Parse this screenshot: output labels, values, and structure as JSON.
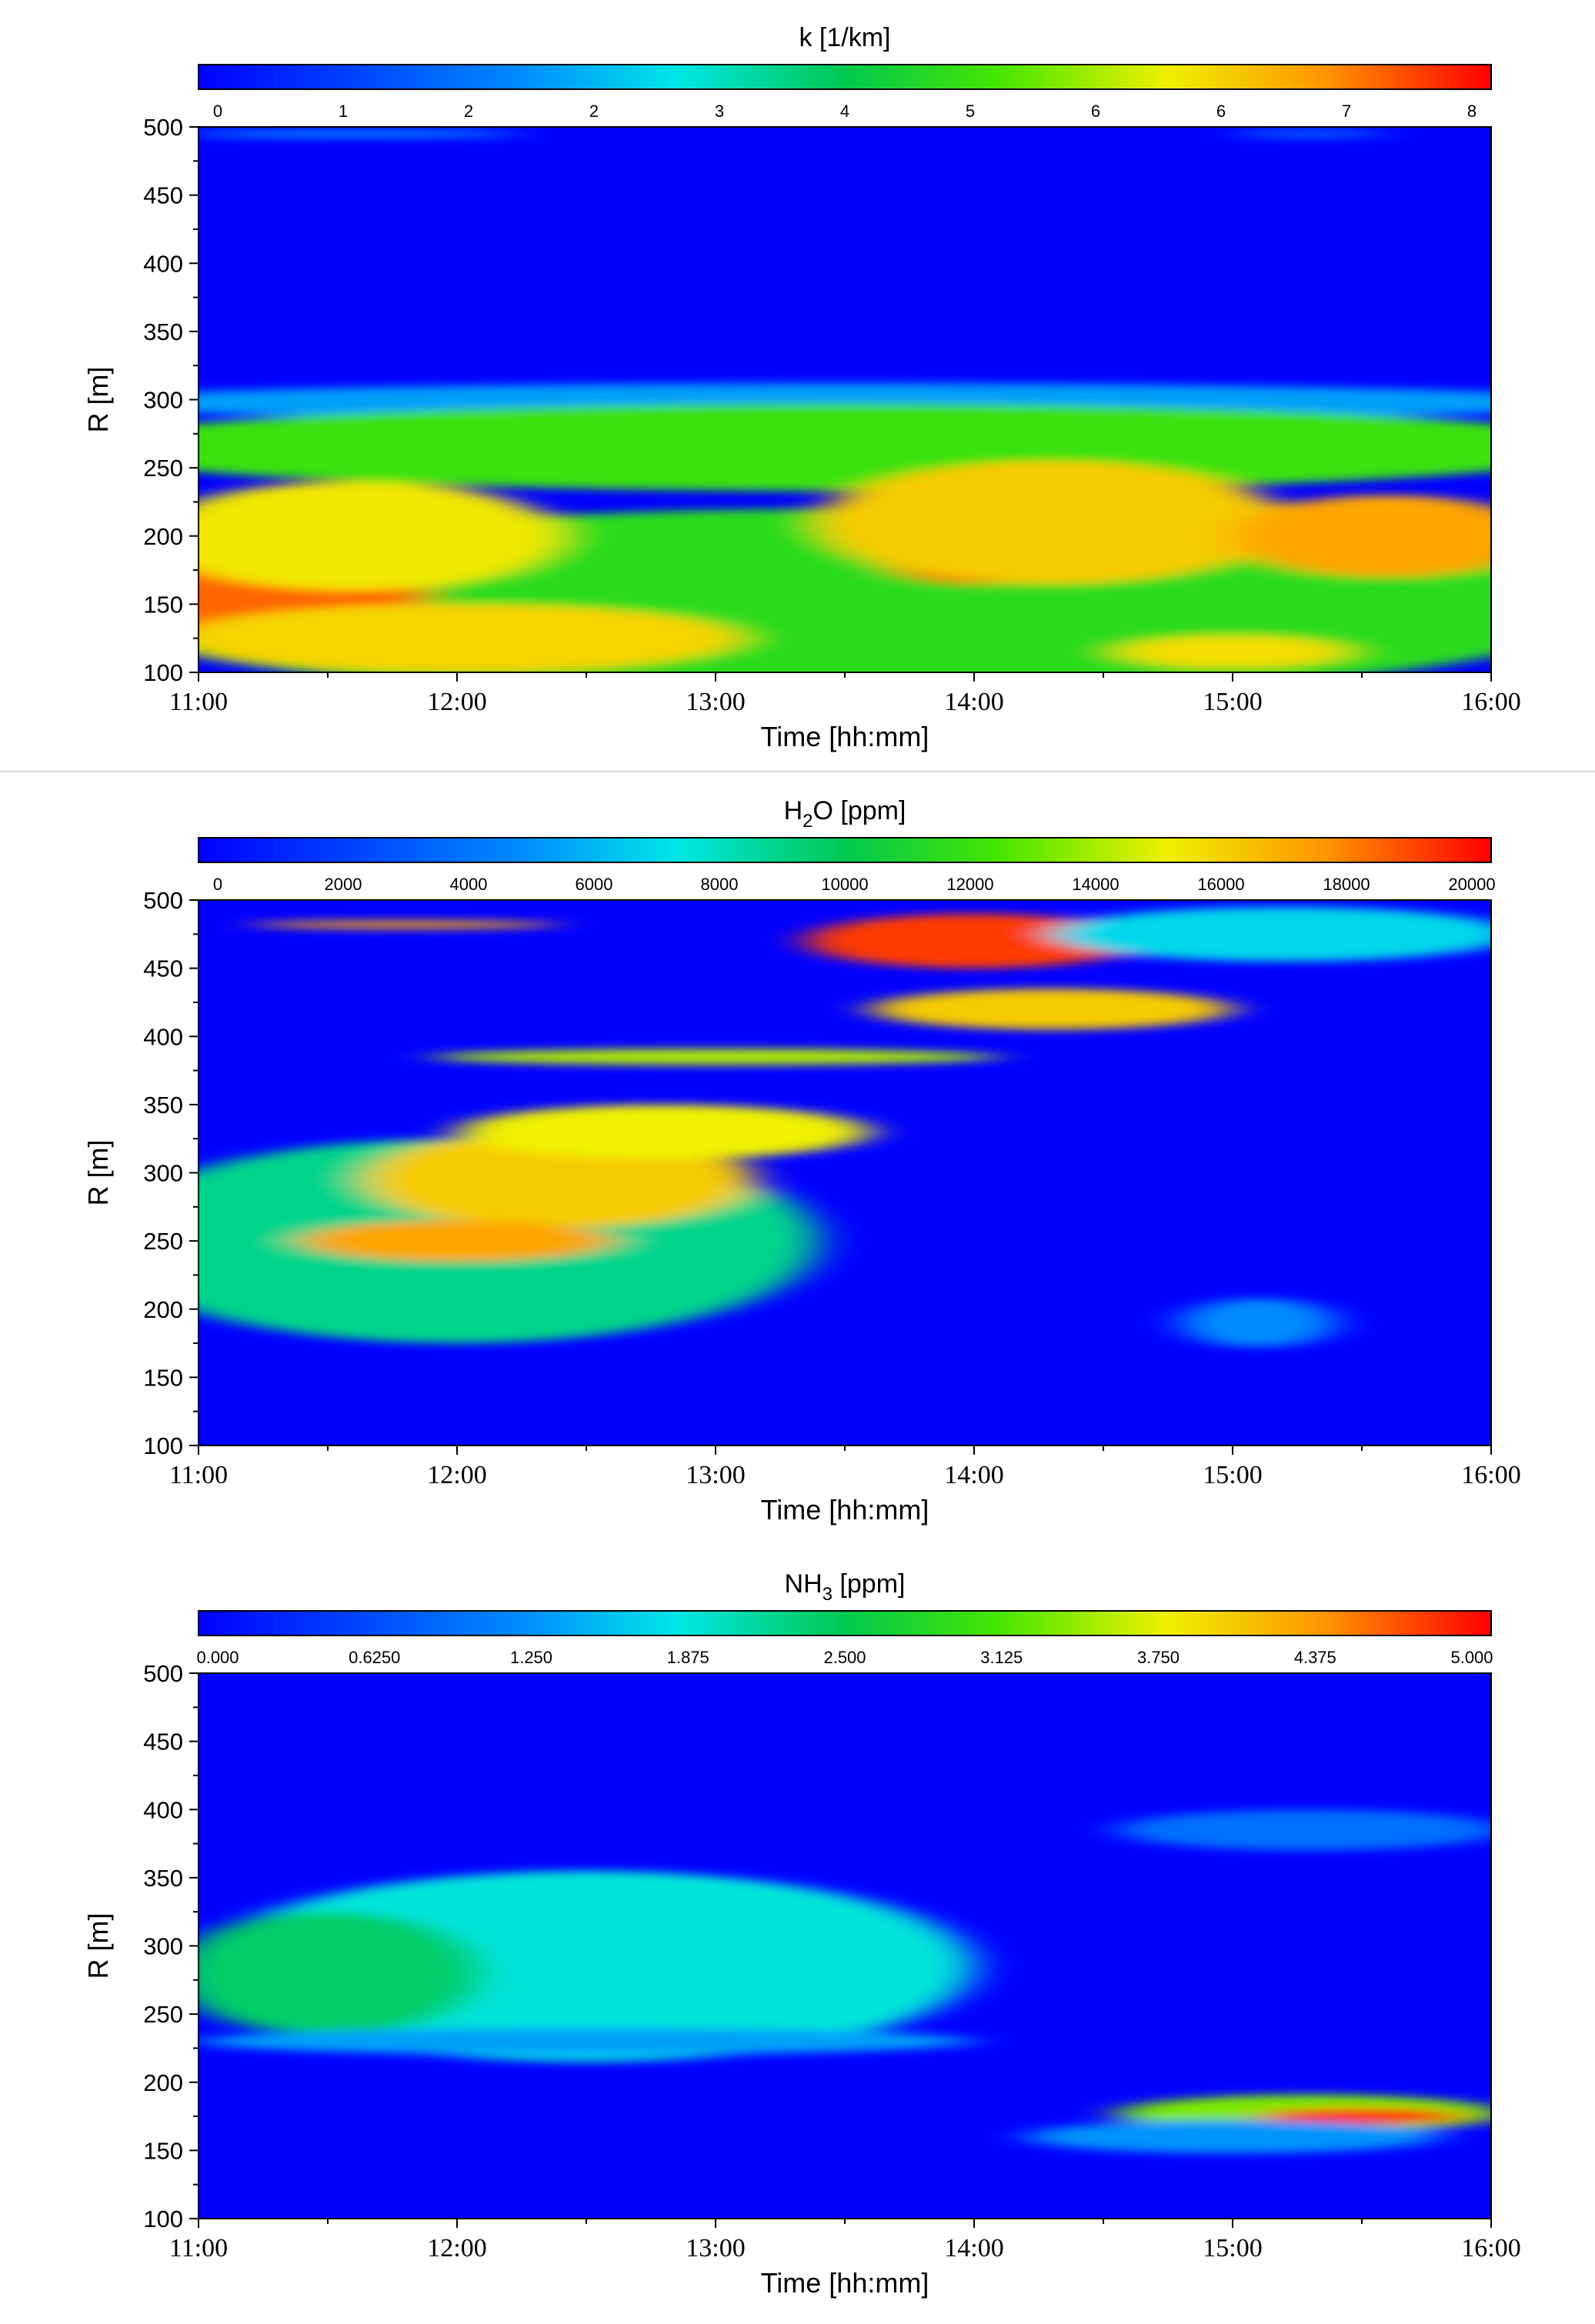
{
  "chart_data": [
    {
      "type": "heatmap",
      "title": "k [1/km]",
      "title_main": "k [1/km]",
      "title_sub": "",
      "title_suffix": "",
      "xlabel": "Time [hh:mm]",
      "ylabel": "R [m]",
      "x_ticks": [
        "11:00",
        "12:00",
        "13:00",
        "14:00",
        "15:00",
        "16:00"
      ],
      "x_range_hours": [
        11,
        16
      ],
      "y_ticks": [
        "100",
        "150",
        "200",
        "250",
        "300",
        "350",
        "400",
        "450",
        "500"
      ],
      "y_range": [
        100,
        500
      ],
      "colorbar_ticks": [
        "0",
        "1",
        "2",
        "2",
        "3",
        "4",
        "5",
        "6",
        "6",
        "7",
        "8"
      ],
      "colorbar_range": [
        0,
        8
      ],
      "features": [
        {
          "t": 11.6,
          "r": 495,
          "dt": 1.3,
          "dr": 3,
          "v": 2.0
        },
        {
          "t": 15.3,
          "r": 495,
          "dt": 0.6,
          "dr": 3,
          "v": 1.5
        },
        {
          "t": 13.5,
          "r": 298,
          "dt": 6.0,
          "dr": 14,
          "v": 2.2
        },
        {
          "t": 13.5,
          "r": 265,
          "dt": 6.0,
          "dr": 32,
          "v": 4.8
        },
        {
          "t": 13.5,
          "r": 150,
          "dt": 6.0,
          "dr": 70,
          "v": 4.6
        },
        {
          "t": 11.3,
          "r": 170,
          "dt": 1.2,
          "dr": 60,
          "v": 7.3
        },
        {
          "t": 11.6,
          "r": 200,
          "dt": 1.6,
          "dr": 40,
          "v": 6.1
        },
        {
          "t": 12.0,
          "r": 125,
          "dt": 2.2,
          "dr": 25,
          "v": 6.3
        },
        {
          "t": 14.0,
          "r": 200,
          "dt": 0.9,
          "dr": 35,
          "v": 8.0
        },
        {
          "t": 14.3,
          "r": 210,
          "dt": 1.8,
          "dr": 45,
          "v": 6.4
        },
        {
          "t": 15.6,
          "r": 200,
          "dt": 1.2,
          "dr": 30,
          "v": 6.8
        },
        {
          "t": 15.0,
          "r": 115,
          "dt": 0.9,
          "dr": 12,
          "v": 6.2
        }
      ]
    },
    {
      "type": "heatmap",
      "title": "H2O [ppm]",
      "title_main": "H",
      "title_sub": "2",
      "title_suffix": "O [ppm]",
      "xlabel": "Time [hh:mm]",
      "ylabel": "R [m]",
      "x_ticks": [
        "11:00",
        "12:00",
        "13:00",
        "14:00",
        "15:00",
        "16:00"
      ],
      "x_range_hours": [
        11,
        16
      ],
      "y_ticks": [
        "100",
        "150",
        "200",
        "250",
        "300",
        "350",
        "400",
        "450",
        "500"
      ],
      "y_range": [
        100,
        500
      ],
      "colorbar_ticks": [
        "0",
        "2000",
        "4000",
        "6000",
        "8000",
        "10000",
        "12000",
        "14000",
        "16000",
        "18000",
        "20000"
      ],
      "colorbar_range": [
        0,
        20000
      ],
      "features": [
        {
          "t": 12.0,
          "r": 250,
          "dt": 2.8,
          "dr": 75,
          "v": 9000
        },
        {
          "t": 12.4,
          "r": 295,
          "dt": 1.5,
          "dr": 35,
          "v": 16000
        },
        {
          "t": 12.0,
          "r": 250,
          "dt": 1.2,
          "dr": 15,
          "v": 17000
        },
        {
          "t": 12.8,
          "r": 330,
          "dt": 1.6,
          "dr": 20,
          "v": 15000
        },
        {
          "t": 13.0,
          "r": 385,
          "dt": 2.2,
          "dr": 6,
          "v": 14000
        },
        {
          "t": 11.8,
          "r": 482,
          "dt": 1.2,
          "dr": 3,
          "v": 17000
        },
        {
          "t": 14.0,
          "r": 470,
          "dt": 1.3,
          "dr": 20,
          "v": 19000
        },
        {
          "t": 14.3,
          "r": 420,
          "dt": 1.4,
          "dr": 15,
          "v": 16000
        },
        {
          "t": 15.2,
          "r": 475,
          "dt": 1.8,
          "dr": 20,
          "v": 7000
        },
        {
          "t": 15.1,
          "r": 190,
          "dt": 0.6,
          "dr": 18,
          "v": 5000
        }
      ]
    },
    {
      "type": "heatmap",
      "title": "NH3 [ppm]",
      "title_main": "NH",
      "title_sub": "3",
      "title_suffix": " [ppm]",
      "xlabel": "Time [hh:mm]",
      "ylabel": "R [m]",
      "x_ticks": [
        "11:00",
        "12:00",
        "13:00",
        "14:00",
        "15:00",
        "16:00"
      ],
      "x_range_hours": [
        11,
        16
      ],
      "y_ticks": [
        "100",
        "150",
        "200",
        "250",
        "300",
        "350",
        "400",
        "450",
        "500"
      ],
      "y_range": [
        100,
        500
      ],
      "colorbar_ticks": [
        "0.000",
        "0.6250",
        "1.250",
        "1.875",
        "2.500",
        "3.125",
        "3.750",
        "4.375",
        "5.000"
      ],
      "colorbar_range": [
        0,
        5
      ],
      "features": [
        {
          "t": 12.5,
          "r": 285,
          "dt": 3.0,
          "dr": 70,
          "v": 1.9
        },
        {
          "t": 11.5,
          "r": 280,
          "dt": 1.2,
          "dr": 45,
          "v": 2.4
        },
        {
          "t": 12.5,
          "r": 230,
          "dt": 3.0,
          "dr": 10,
          "v": 1.4
        },
        {
          "t": 15.3,
          "r": 385,
          "dt": 1.5,
          "dr": 15,
          "v": 1.0
        },
        {
          "t": 15.3,
          "r": 177,
          "dt": 1.5,
          "dr": 14,
          "v": 3.3
        },
        {
          "t": 15.5,
          "r": 175,
          "dt": 0.8,
          "dr": 6,
          "v": 4.8
        },
        {
          "t": 15.0,
          "r": 160,
          "dt": 1.6,
          "dr": 12,
          "v": 1.3
        }
      ]
    }
  ]
}
